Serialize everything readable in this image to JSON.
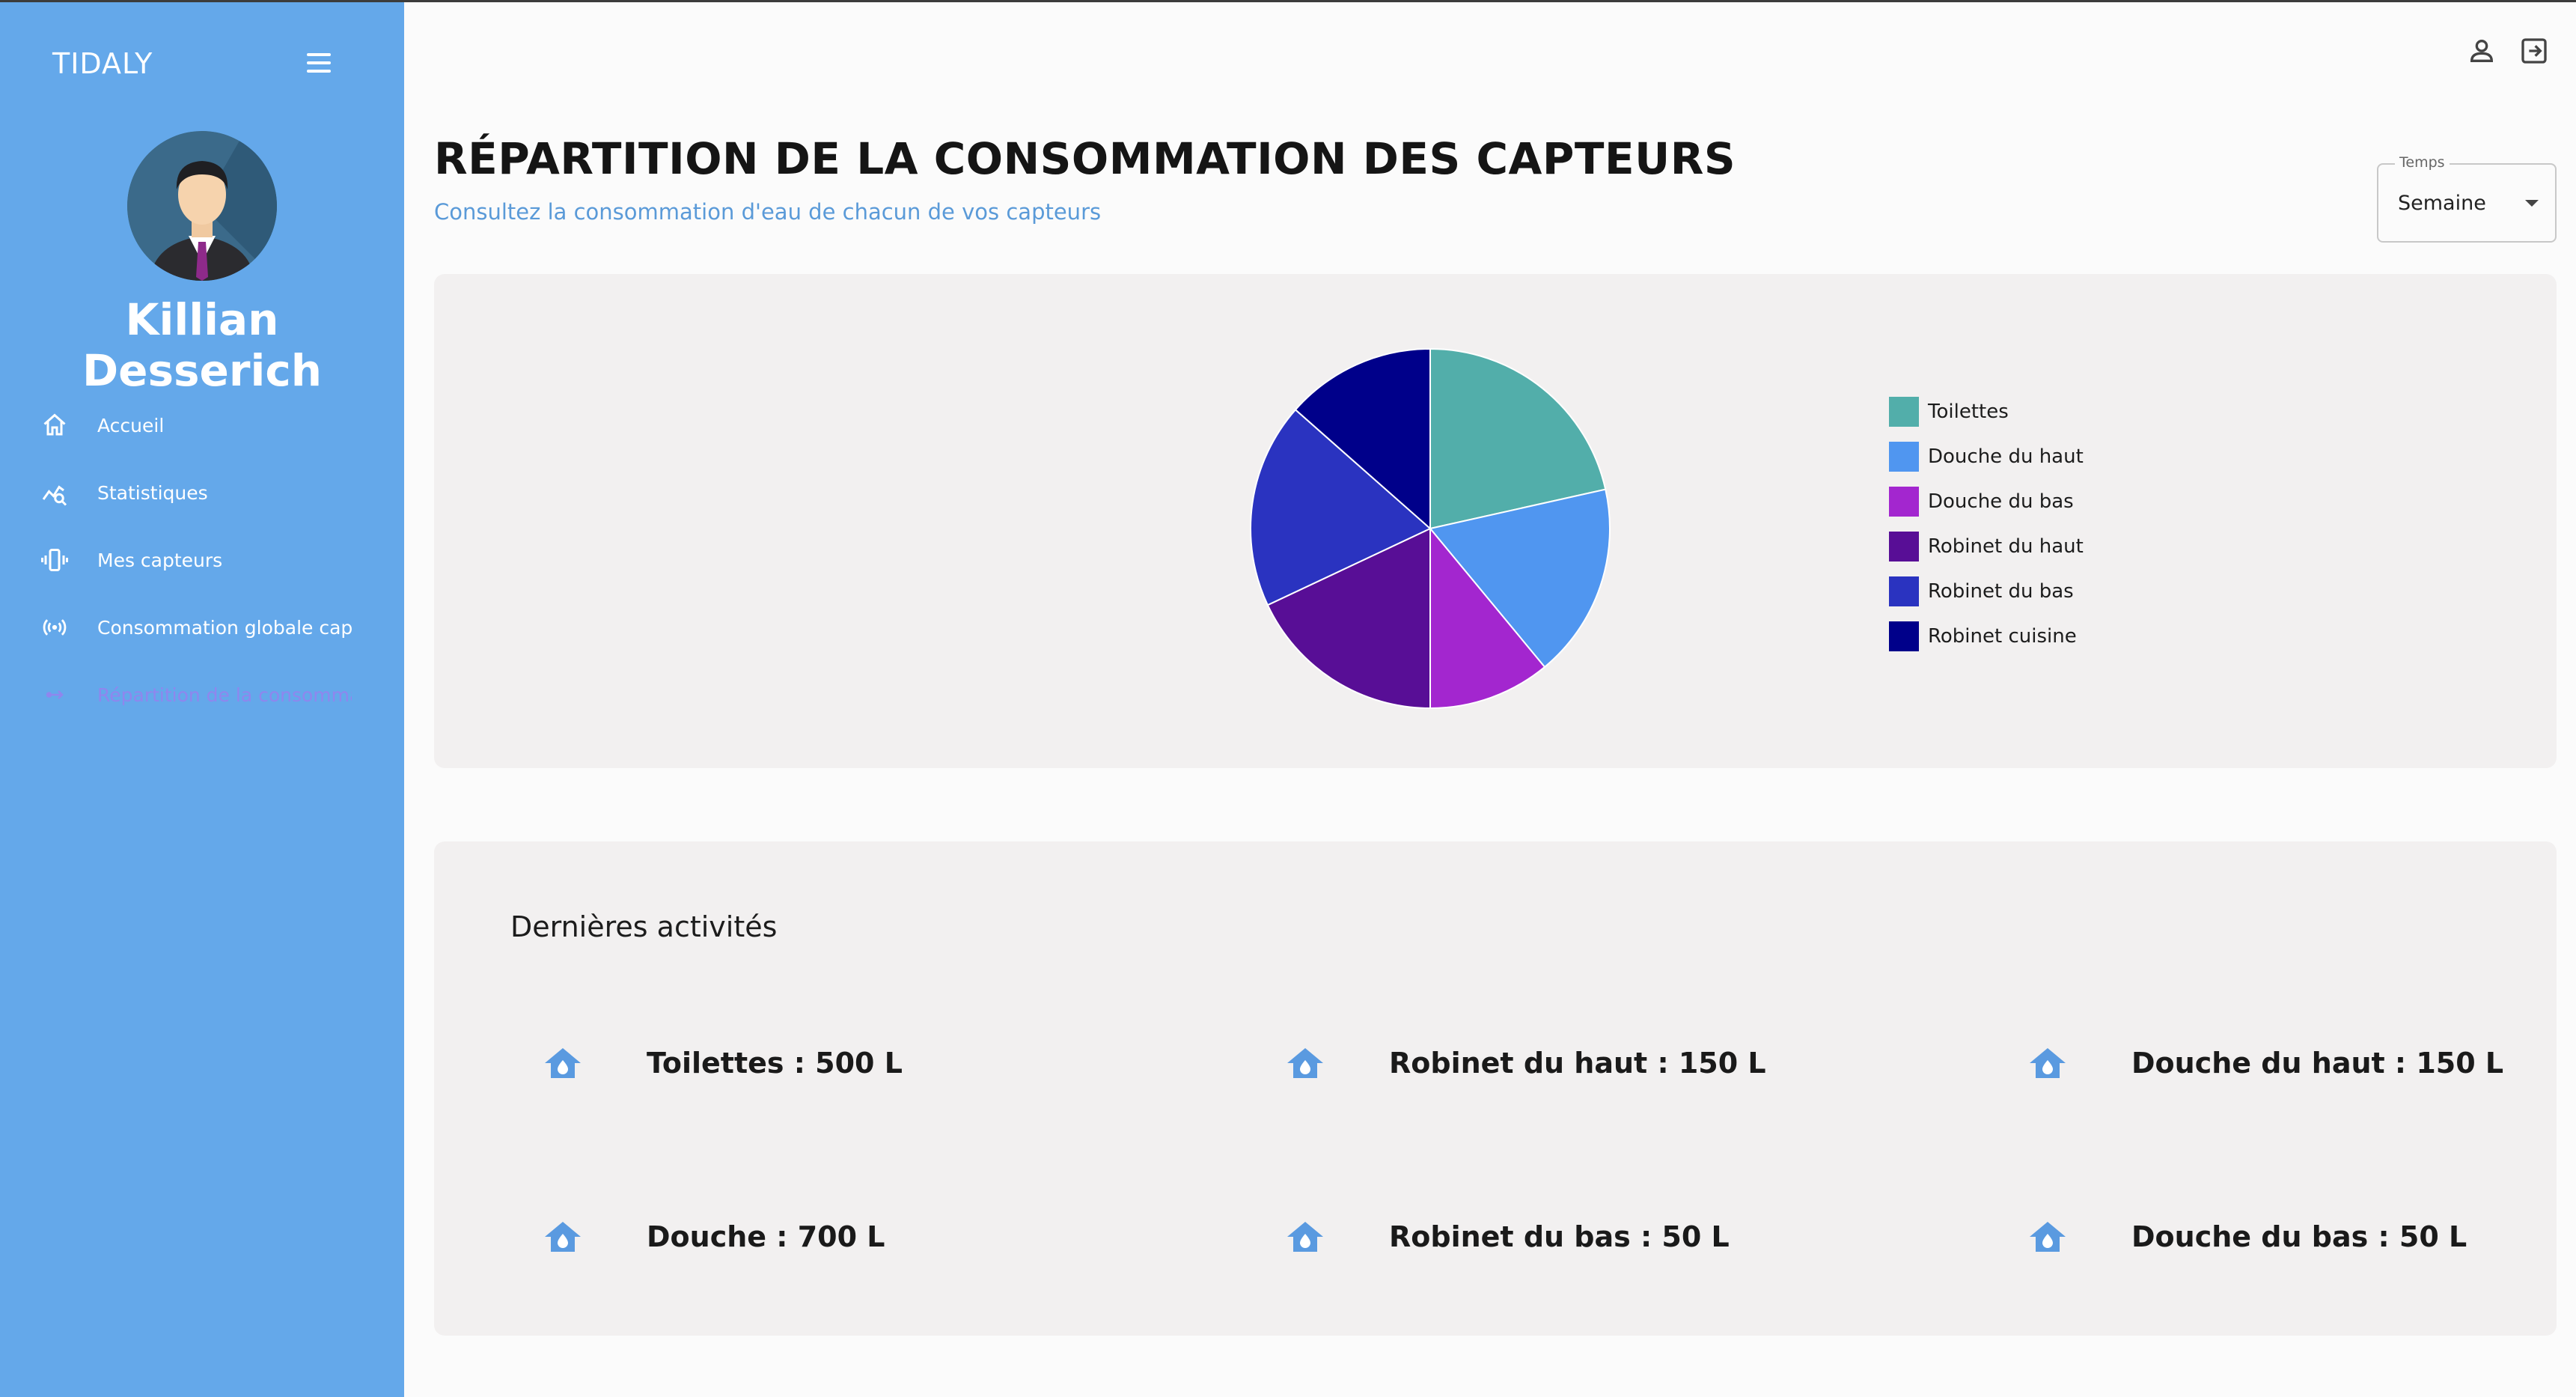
{
  "app": {
    "title": "TIDALY"
  },
  "user": {
    "name": "Killian Desserich"
  },
  "sidebar": {
    "items": [
      {
        "label": "Accueil",
        "icon": "home-icon"
      },
      {
        "label": "Statistiques",
        "icon": "stats-icon"
      },
      {
        "label": "Mes capteurs",
        "icon": "sensor-device-icon"
      },
      {
        "label": "Consommation globale capteurs",
        "icon": "broadcast-icon"
      },
      {
        "label": "Répartition de la consommation",
        "icon": "distribution-icon",
        "active": true
      }
    ]
  },
  "header": {
    "title": "RÉPARTITION DE LA CONSOMMATION DES CAPTEURS",
    "subtitle": "Consultez la consommation d'eau de chacun de vos capteurs"
  },
  "time_select": {
    "legend": "Temps",
    "value": "Semaine"
  },
  "chart_data": {
    "type": "pie",
    "categories": [
      "Toilettes",
      "Douche du haut",
      "Douche du bas",
      "Robinet du haut",
      "Robinet du bas",
      "Robinet cuisine"
    ],
    "values": [
      21.5,
      17.5,
      11,
      18,
      18.5,
      13.5
    ],
    "colors": [
      "#52aeaa",
      "#5096f0",
      "#a326cf",
      "#580e96",
      "#2a33c0",
      "#00008a"
    ],
    "legend_position": "right"
  },
  "activities": {
    "title": "Dernières activités",
    "items": [
      "Toilettes : 500 L",
      "Robinet du haut : 150 L",
      "Douche du haut : 150 L",
      "Douche : 700 L",
      "Robinet du bas : 50 L",
      "Douche du bas : 50 L"
    ]
  }
}
